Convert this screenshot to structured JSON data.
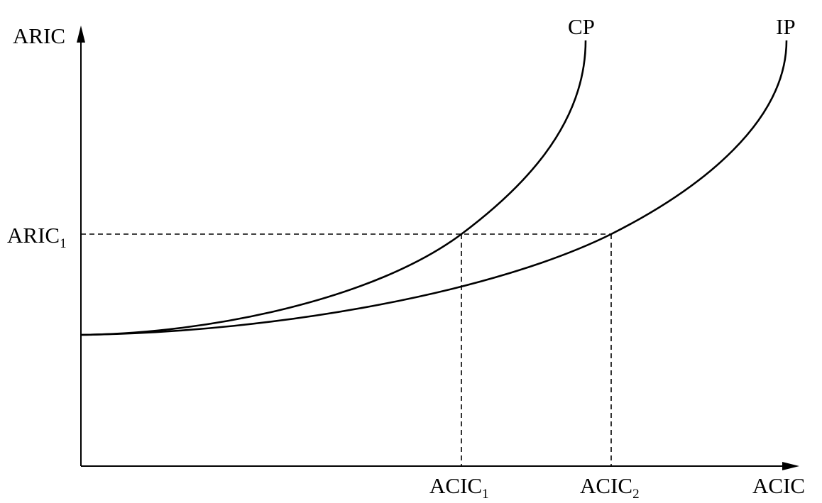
{
  "axes": {
    "y_label": "ARIC",
    "x_label": "ACIC"
  },
  "curves": [
    {
      "id": "cp",
      "label": "CP"
    },
    {
      "id": "ip",
      "label": "IP"
    }
  ],
  "reference_levels": {
    "aric1": {
      "base": "ARIC",
      "subscript": "1"
    },
    "acic1": {
      "base": "ACIC",
      "subscript": "1"
    },
    "acic2": {
      "base": "ACIC",
      "subscript": "2"
    }
  },
  "colors": {
    "ink": "#000000",
    "background": "#ffffff"
  }
}
